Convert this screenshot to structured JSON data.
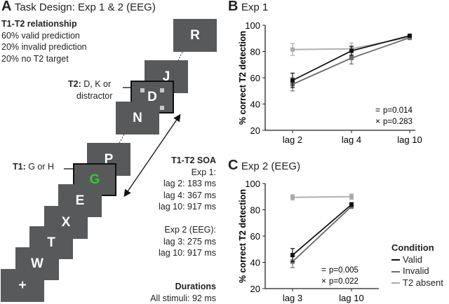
{
  "panelA": {
    "label": "A",
    "title": "Task Design: Exp 1 & 2 (EEG)",
    "relationship_heading": "T1-T2 relationship",
    "relationship_lines": [
      "60% valid prediction",
      "20% invalid prediction",
      "20% no T2 target"
    ],
    "t2_bold": "T2:",
    "t2_text": " D, K or",
    "t2_text2": "distractor",
    "t1_bold": "T1:",
    "t1_text": " G or H",
    "soa_heading": "T1-T2 SOA",
    "soa_lines": [
      "Exp 1:",
      "lag 2: 183 ms",
      "lag 4: 367 ms",
      "lag 10: 917 ms",
      "",
      "Exp 2 (EEG):",
      "lag 3: 275 ms",
      "lag 10: 917 ms"
    ],
    "durations_heading": "Durations",
    "durations_text": "All stimuli: 92 ms",
    "frames": [
      "+",
      "W",
      "T",
      "X",
      "E",
      "G",
      "P",
      "N",
      "D",
      "J",
      "R"
    ],
    "t1_color": "#2ecc2e"
  },
  "chart_data": [
    {
      "type": "line",
      "label": "B",
      "title": "Exp 1",
      "ylabel": "% correct T2 detection",
      "xlabel": "",
      "categories": [
        "lag 2",
        "lag 4",
        "lag 10"
      ],
      "ylim": [
        20,
        100
      ],
      "yticks": [
        20,
        40,
        60,
        80,
        100
      ],
      "series": [
        {
          "name": "T2 absent",
          "color": "#aaaaaa",
          "values": [
            81.5,
            82,
            91
          ],
          "errors": [
            4.5,
            4.5,
            1.5
          ]
        },
        {
          "name": "Invalid",
          "color": "#6d6d6d",
          "values": [
            55,
            75,
            90.5
          ],
          "errors": [
            5,
            4.5,
            1.5
          ]
        },
        {
          "name": "Valid",
          "color": "#111111",
          "values": [
            58,
            80.5,
            92
          ],
          "errors": [
            5.5,
            3.5,
            1
          ]
        }
      ],
      "annotations": [
        {
          "symbol": "=",
          "text": "p=0.014"
        },
        {
          "symbol": "×",
          "text": "p=0.283"
        }
      ]
    },
    {
      "type": "line",
      "label": "C",
      "title": "Exp 2 (EEG)",
      "ylabel": "% correct T2 detection",
      "xlabel": "",
      "categories": [
        "lag 3",
        "lag 10"
      ],
      "ylim": [
        20,
        100
      ],
      "yticks": [
        20,
        40,
        60,
        80,
        100
      ],
      "series": [
        {
          "name": "T2 absent",
          "color": "#aaaaaa",
          "values": [
            89.5,
            90
          ],
          "errors": [
            2,
            2
          ]
        },
        {
          "name": "Invalid",
          "color": "#6d6d6d",
          "values": [
            40.5,
            82.5
          ],
          "errors": [
            4.5,
            1.5
          ]
        },
        {
          "name": "Valid",
          "color": "#111111",
          "values": [
            45.5,
            84
          ],
          "errors": [
            5,
            1.5
          ]
        }
      ],
      "annotations": [
        {
          "symbol": "=",
          "text": "p=0.005"
        },
        {
          "symbol": "×",
          "text": "p=0.022"
        }
      ]
    }
  ],
  "legend": {
    "title": "Condition",
    "items": [
      {
        "name": "Valid",
        "color": "#111111"
      },
      {
        "name": "Invalid",
        "color": "#6d6d6d"
      },
      {
        "name": "T2 absent",
        "color": "#aaaaaa"
      }
    ]
  }
}
